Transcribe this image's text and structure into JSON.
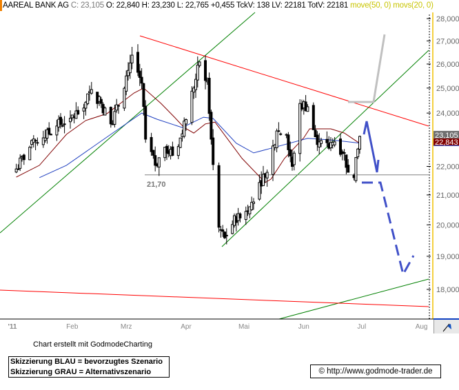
{
  "header": {
    "symbol": "AAREAL BANK AG",
    "close": "C: 23,105",
    "ohlc": "O: 22,840 H: 23,230 L: 22,765 +0,455 TckV: 138 LV: 22181 TotV: 22181",
    "indicators": "move(50, 0) movs(20, 0)"
  },
  "chart_data": {
    "type": "candlestick",
    "y_scale": "log",
    "ylim": [
      17500,
      28500
    ],
    "y_ticks": [
      "28,000",
      "27,000",
      "26,000",
      "25,000",
      "24,000",
      "22,000",
      "21,000",
      "20,000",
      "19,000",
      "18,000"
    ],
    "y_tick_values": [
      28000,
      27000,
      26000,
      25000,
      24000,
      22000,
      21000,
      20000,
      19000,
      18000
    ],
    "x_ticks": [
      "'11",
      "Feb",
      "Mrz",
      "Apr",
      "Mai",
      "Jun",
      "Jul",
      "Aug"
    ],
    "x_tick_dates": [
      "2011-01-01",
      "2011-02-01",
      "2011-03-01",
      "2011-04-01",
      "2011-05-01",
      "2011-06-01",
      "2011-07-01",
      "2011-08-01"
    ],
    "closes": [
      [
        "2011-01-03",
        21910
      ],
      [
        "2011-01-10",
        22700
      ],
      [
        "2011-01-17",
        23050
      ],
      [
        "2011-01-24",
        23500
      ],
      [
        "2011-01-31",
        23800
      ],
      [
        "2011-02-07",
        24200
      ],
      [
        "2011-02-11",
        24940
      ],
      [
        "2011-02-16",
        24380
      ],
      [
        "2011-02-21",
        23580
      ],
      [
        "2011-02-25",
        24300
      ],
      [
        "2011-03-01",
        25500
      ],
      [
        "2011-03-04",
        26380
      ],
      [
        "2011-03-09",
        25200
      ],
      [
        "2011-03-11",
        23000
      ],
      [
        "2011-03-16",
        22040
      ],
      [
        "2011-03-21",
        22700
      ],
      [
        "2011-03-25",
        22400
      ],
      [
        "2011-03-30",
        23200
      ],
      [
        "2011-04-05",
        25000
      ],
      [
        "2011-04-08",
        26090
      ],
      [
        "2011-04-12",
        25300
      ],
      [
        "2011-04-14",
        23000
      ],
      [
        "2011-04-18",
        19920
      ],
      [
        "2011-04-21",
        19580
      ],
      [
        "2011-04-28",
        20370
      ],
      [
        "2011-05-04",
        20600
      ],
      [
        "2011-05-09",
        21430
      ],
      [
        "2011-05-13",
        21790
      ],
      [
        "2011-05-18",
        23310
      ],
      [
        "2011-05-23",
        23180
      ],
      [
        "2011-05-26",
        22000
      ],
      [
        "2011-05-30",
        24380
      ],
      [
        "2011-06-03",
        24250
      ],
      [
        "2011-06-08",
        22800
      ],
      [
        "2011-06-14",
        22660
      ],
      [
        "2011-06-17",
        22900
      ],
      [
        "2011-06-22",
        22500
      ],
      [
        "2011-06-24",
        21790
      ],
      [
        "2011-06-27",
        21600
      ],
      [
        "2011-06-30",
        23105
      ]
    ],
    "series": [
      {
        "name": "movs(20, 0)",
        "color": "#800000",
        "points": [
          [
            "2011-01-03",
            21620
          ],
          [
            "2011-01-15",
            22040
          ],
          [
            "2011-01-29",
            23180
          ],
          [
            "2011-02-08",
            23710
          ],
          [
            "2011-02-19",
            23980
          ],
          [
            "2011-03-05",
            24800
          ],
          [
            "2011-03-10",
            25000
          ],
          [
            "2011-03-19",
            24380
          ],
          [
            "2011-03-26",
            23840
          ],
          [
            "2011-03-31",
            23440
          ],
          [
            "2011-04-05",
            23230
          ],
          [
            "2011-04-11",
            23580
          ],
          [
            "2011-04-16",
            23650
          ],
          [
            "2011-04-30",
            22290
          ],
          [
            "2011-05-12",
            21430
          ],
          [
            "2011-05-15",
            21550
          ],
          [
            "2011-05-22",
            22290
          ],
          [
            "2011-06-01",
            23050
          ],
          [
            "2011-06-04",
            23390
          ],
          [
            "2011-06-15",
            23390
          ],
          [
            "2011-06-22",
            23230
          ],
          [
            "2011-06-30",
            22843
          ]
        ]
      },
      {
        "name": "move(50, 0)",
        "color": "#2040c0",
        "points": [
          [
            "2011-01-15",
            21600
          ],
          [
            "2011-01-29",
            22040
          ],
          [
            "2011-02-19",
            23080
          ],
          [
            "2011-03-09",
            24000
          ],
          [
            "2011-03-17",
            23760
          ],
          [
            "2011-03-30",
            23440
          ],
          [
            "2011-04-10",
            23840
          ],
          [
            "2011-04-15",
            23790
          ],
          [
            "2011-04-27",
            22850
          ],
          [
            "2011-05-06",
            22490
          ],
          [
            "2011-05-15",
            22660
          ],
          [
            "2011-06-03",
            23030
          ],
          [
            "2011-06-15",
            22970
          ],
          [
            "2011-06-22",
            22920
          ],
          [
            "2011-06-30",
            22850
          ]
        ]
      }
    ],
    "last_price_label": "23,105",
    "ma20_label": "22,843",
    "support_level": 21700,
    "support_label": "21,70",
    "colors": {
      "up": "#ffffff",
      "down": "#000000",
      "trend_red": "#ff0000",
      "trend_green": "#008000",
      "scenario_blue": "#4050c8",
      "scenario_gray": "#c0c0c0",
      "axis_border": "#f0c000"
    }
  },
  "footer": {
    "credit": "Chart erstellt mit GodmodeCharting",
    "legend_blue": "Skizzierung BLAU = bevorzugtes Szenario",
    "legend_gray": "Skizzierung GRAU = Alternativszenario",
    "copyright": "© http://www.godmode-trader.de"
  }
}
